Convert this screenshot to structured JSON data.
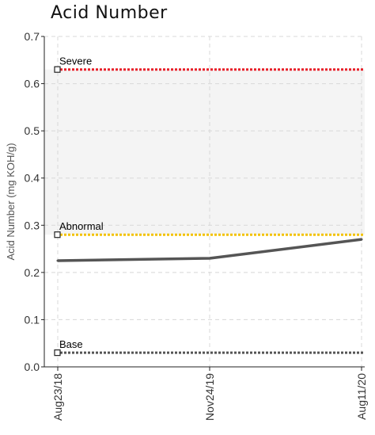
{
  "chart_data": {
    "type": "line",
    "title": "Acid Number",
    "ylabel": "Acid Number (mg KOH/g)",
    "xlabel": "",
    "ylim": [
      0,
      0.7
    ],
    "yticks": [
      "0.0",
      "0.1",
      "0.2",
      "0.3",
      "0.4",
      "0.5",
      "0.6",
      "0.7"
    ],
    "yticks_values": [
      0,
      0.1,
      0.2,
      0.3,
      0.4,
      0.5,
      0.6,
      0.7
    ],
    "x_categories": [
      "Aug23/18",
      "Nov24/19",
      "Aug11/20"
    ],
    "series": [
      {
        "values": [
          0.225,
          0.23,
          0.27
        ],
        "color": "#555555"
      }
    ],
    "reference_lines": [
      {
        "name": "Severe",
        "value": 0.63,
        "color": "#e8202a"
      },
      {
        "name": "Abnormal",
        "value": 0.28,
        "color": "#f2c200"
      },
      {
        "name": "Base",
        "value": 0.03,
        "color": "#555555"
      }
    ],
    "band": {
      "from": 0.28,
      "to": 0.63,
      "color": "#f4f4f4"
    },
    "grid": true,
    "legend": "none"
  }
}
